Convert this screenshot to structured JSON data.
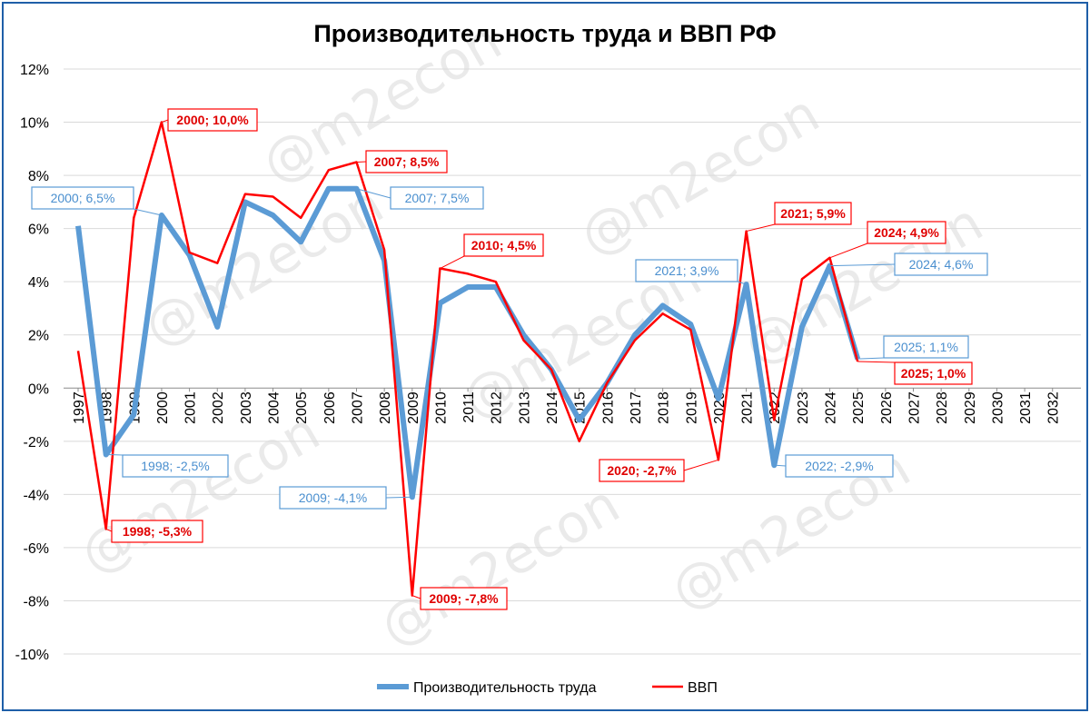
{
  "chart_data": {
    "type": "line",
    "title": "Производительность труда и ВВП РФ",
    "watermark": "@m2econ",
    "ylim": [
      -10,
      12
    ],
    "y_ticks": [
      12,
      10,
      8,
      6,
      4,
      2,
      0,
      -2,
      -4,
      -6,
      -8,
      -10
    ],
    "y_tick_labels": [
      "12%",
      "10%",
      "8%",
      "6%",
      "4%",
      "2%",
      "0%",
      "-2%",
      "-4%",
      "-6%",
      "-8%",
      "-10%"
    ],
    "x": [
      "1997",
      "1998",
      "1999",
      "2000",
      "2001",
      "2002",
      "2003",
      "2004",
      "2005",
      "2006",
      "2007",
      "2008",
      "2009",
      "2010",
      "2011",
      "2012",
      "2013",
      "2014",
      "2015",
      "2016",
      "2017",
      "2018",
      "2019",
      "2020",
      "2021",
      "2022",
      "2023",
      "2024",
      "2025",
      "2026",
      "2027",
      "2028",
      "2029",
      "2030",
      "2031",
      "2032"
    ],
    "grid": true,
    "legend_position": "bottom",
    "series": [
      {
        "name": "Производительность труда",
        "color": "#5b9bd5",
        "values": [
          6.1,
          -2.5,
          -1.0,
          6.5,
          5.0,
          2.3,
          7.0,
          6.5,
          5.5,
          7.5,
          7.5,
          4.8,
          -4.1,
          3.2,
          3.8,
          3.8,
          2.0,
          0.7,
          -1.2,
          0.2,
          2.0,
          3.1,
          2.4,
          -0.4,
          3.9,
          -2.9,
          2.3,
          4.6,
          1.1,
          null,
          null,
          null,
          null,
          null,
          null,
          null
        ]
      },
      {
        "name": "ВВП",
        "color": "#ff0000",
        "values": [
          1.4,
          -5.3,
          6.4,
          10.0,
          5.1,
          4.7,
          7.3,
          7.2,
          6.4,
          8.2,
          8.5,
          5.2,
          -7.8,
          4.5,
          4.3,
          4.0,
          1.8,
          0.7,
          -2.0,
          0.2,
          1.8,
          2.8,
          2.2,
          -2.7,
          5.9,
          -1.2,
          4.1,
          4.9,
          1.0,
          null,
          null,
          null,
          null,
          null,
          null,
          null
        ]
      }
    ],
    "annotations": [
      {
        "series": 0,
        "x": "1998",
        "text": "1998; -2,5%"
      },
      {
        "series": 0,
        "x": "2000",
        "text": "2000; 6,5%"
      },
      {
        "series": 0,
        "x": "2007",
        "text": "2007; 7,5%"
      },
      {
        "series": 0,
        "x": "2009",
        "text": "2009; -4,1%"
      },
      {
        "series": 0,
        "x": "2021",
        "text": "2021; 3,9%"
      },
      {
        "series": 0,
        "x": "2022",
        "text": "2022; -2,9%"
      },
      {
        "series": 0,
        "x": "2024",
        "text": "2024; 4,6%"
      },
      {
        "series": 0,
        "x": "2025",
        "text": "2025; 1,1%"
      },
      {
        "series": 1,
        "x": "1998",
        "text": "1998; -5,3%"
      },
      {
        "series": 1,
        "x": "2000",
        "text": "2000; 10,0%"
      },
      {
        "series": 1,
        "x": "2007",
        "text": "2007; 8,5%"
      },
      {
        "series": 1,
        "x": "2009",
        "text": "2009; -7,8%"
      },
      {
        "series": 1,
        "x": "2010",
        "text": "2010; 4,5%"
      },
      {
        "series": 1,
        "x": "2020",
        "text": "2020; -2,7%"
      },
      {
        "series": 1,
        "x": "2021",
        "text": "2021; 5,9%"
      },
      {
        "series": 1,
        "x": "2024",
        "text": "2024; 4,9%"
      },
      {
        "series": 1,
        "x": "2025",
        "text": "2025; 1,0%"
      }
    ]
  }
}
